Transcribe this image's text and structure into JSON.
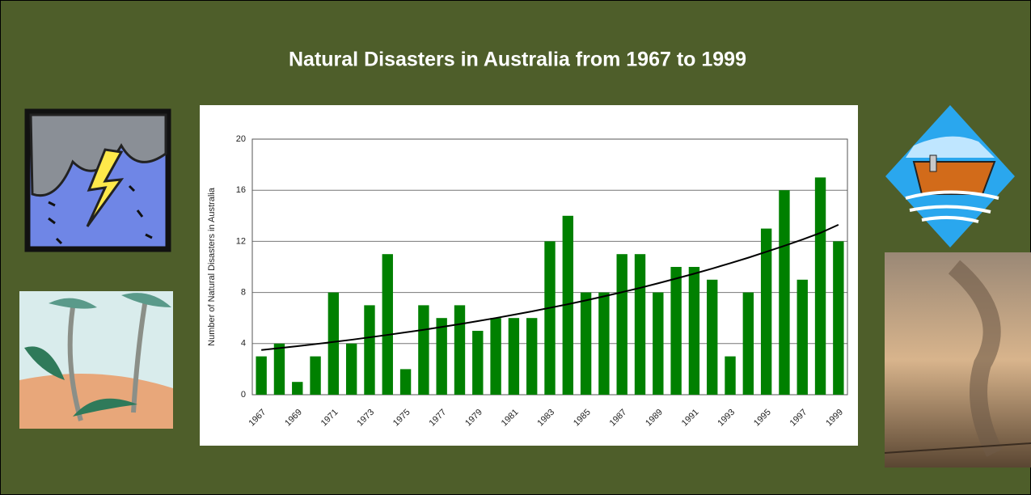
{
  "chart_data": {
    "type": "bar",
    "title": "Natural Disasters in Australia from 1967 to 1999",
    "ylabel": "Number of Natural Disasters in Australia",
    "categories": [
      "1967",
      null,
      "1969",
      null,
      "1971",
      null,
      "1973",
      null,
      "1975",
      null,
      "1977",
      null,
      "1979",
      null,
      "1981",
      null,
      "1983",
      null,
      "1985",
      null,
      "1987",
      null,
      "1989",
      null,
      "1991",
      null,
      "1993",
      null,
      "1995",
      null,
      "1997",
      null,
      "1999"
    ],
    "values": [
      3,
      4,
      1,
      3,
      8,
      4,
      7,
      11,
      2,
      7,
      6,
      7,
      5,
      6,
      6,
      6,
      12,
      14,
      8,
      8,
      11,
      11,
      8,
      10,
      10,
      9,
      3,
      8,
      13,
      16,
      9,
      17,
      12
    ],
    "color": "#008000",
    "trendline": [
      3.5,
      3.65,
      3.8,
      3.96,
      4.13,
      4.3,
      4.49,
      4.68,
      4.88,
      5.08,
      5.3,
      5.52,
      5.76,
      6.0,
      6.26,
      6.52,
      6.8,
      7.08,
      7.38,
      7.7,
      8.02,
      8.36,
      8.72,
      9.09,
      9.47,
      9.87,
      10.29,
      10.72,
      11.18,
      11.65,
      12.14,
      12.66,
      13.3
    ],
    "trendline_color": "#000000",
    "ylim": [
      0,
      20
    ],
    "yticks": [
      0,
      4,
      8,
      12,
      16,
      20
    ],
    "grid": true
  }
}
